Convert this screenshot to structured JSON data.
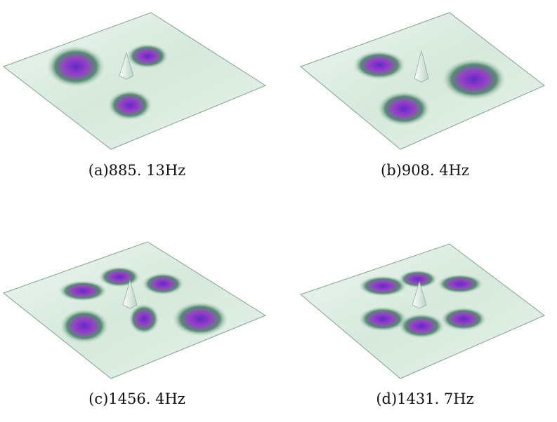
{
  "panels": [
    {
      "caption": "(a)885. 13Hz"
    },
    {
      "caption": "(b)908. 4Hz"
    },
    {
      "caption": "(c)1456. 4Hz"
    },
    {
      "caption": "(d)1431. 7Hz"
    }
  ]
}
